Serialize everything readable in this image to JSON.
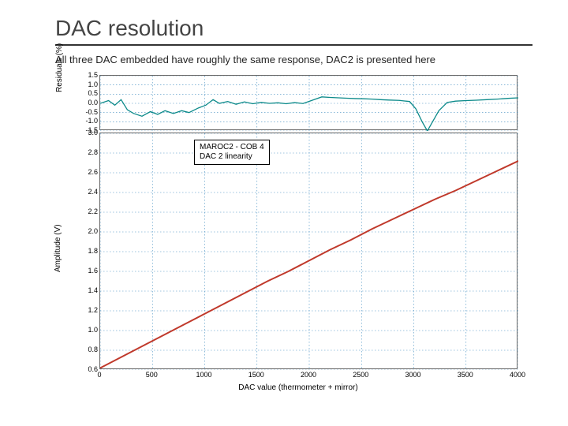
{
  "title": "DAC resolution",
  "subtitle": "All three DAC embedded have roughly the same response, DAC2 is presented here",
  "chart": {
    "legend": {
      "line1": "MAROC2 - COB 4",
      "line2": "DAC 2 linearity"
    },
    "xaxis": {
      "label": "DAC value (thermometer + mirror)",
      "min": 0,
      "max": 4000,
      "ticks": [
        0,
        500,
        1000,
        1500,
        2000,
        2500,
        3000,
        3500,
        4000
      ]
    },
    "residuals": {
      "ylabel": "Residuals (%)",
      "min": -1.5,
      "max": 1.5,
      "ticks": [
        -1.5,
        -1.0,
        -0.5,
        0.0,
        0.5,
        1.0,
        1.5
      ],
      "color": "#0c8a8a",
      "data": [
        [
          0,
          0.0
        ],
        [
          80,
          0.15
        ],
        [
          140,
          -0.1
        ],
        [
          200,
          0.2
        ],
        [
          260,
          -0.35
        ],
        [
          320,
          -0.55
        ],
        [
          400,
          -0.7
        ],
        [
          480,
          -0.45
        ],
        [
          550,
          -0.6
        ],
        [
          620,
          -0.4
        ],
        [
          700,
          -0.55
        ],
        [
          780,
          -0.4
        ],
        [
          850,
          -0.5
        ],
        [
          940,
          -0.25
        ],
        [
          1010,
          -0.1
        ],
        [
          1080,
          0.2
        ],
        [
          1140,
          0.0
        ],
        [
          1220,
          0.1
        ],
        [
          1300,
          -0.05
        ],
        [
          1380,
          0.08
        ],
        [
          1460,
          -0.02
        ],
        [
          1540,
          0.05
        ],
        [
          1620,
          0.0
        ],
        [
          1700,
          0.03
        ],
        [
          1780,
          -0.02
        ],
        [
          1860,
          0.04
        ],
        [
          1940,
          -0.01
        ],
        [
          2020,
          0.15
        ],
        [
          2120,
          0.35
        ],
        [
          2200,
          0.32
        ],
        [
          2280,
          0.3
        ],
        [
          2360,
          0.28
        ],
        [
          2440,
          0.26
        ],
        [
          2520,
          0.25
        ],
        [
          2600,
          0.23
        ],
        [
          2680,
          0.2
        ],
        [
          2760,
          0.18
        ],
        [
          2860,
          0.16
        ],
        [
          2960,
          0.1
        ],
        [
          3020,
          -0.3
        ],
        [
          3080,
          -1.0
        ],
        [
          3130,
          -1.5
        ],
        [
          3180,
          -1.0
        ],
        [
          3240,
          -0.4
        ],
        [
          3320,
          0.05
        ],
        [
          3400,
          0.12
        ],
        [
          3500,
          0.15
        ],
        [
          3600,
          0.17
        ],
        [
          3700,
          0.2
        ],
        [
          3800,
          0.23
        ],
        [
          3900,
          0.27
        ],
        [
          4000,
          0.3
        ]
      ]
    },
    "amplitude": {
      "ylabel": "Amplitude (V)",
      "min": 0.6,
      "max": 3.0,
      "ticks": [
        0.6,
        0.8,
        1.0,
        1.2,
        1.4,
        1.6,
        1.8,
        2.0,
        2.2,
        2.4,
        2.6,
        2.8,
        3.0
      ],
      "color": "#c0392b",
      "data": [
        [
          0,
          0.62
        ],
        [
          200,
          0.73
        ],
        [
          400,
          0.84
        ],
        [
          600,
          0.95
        ],
        [
          800,
          1.06
        ],
        [
          1000,
          1.17
        ],
        [
          1200,
          1.28
        ],
        [
          1400,
          1.39
        ],
        [
          1600,
          1.5
        ],
        [
          1800,
          1.6
        ],
        [
          2000,
          1.71
        ],
        [
          2200,
          1.82
        ],
        [
          2400,
          1.92
        ],
        [
          2600,
          2.03
        ],
        [
          2800,
          2.13
        ],
        [
          3000,
          2.23
        ],
        [
          3200,
          2.33
        ],
        [
          3400,
          2.42
        ],
        [
          3600,
          2.52
        ],
        [
          3800,
          2.62
        ],
        [
          4000,
          2.72
        ]
      ]
    },
    "colors": {
      "grid": "#1e78b4",
      "border": "#666666",
      "background": "#ffffff",
      "text": "#000000"
    }
  }
}
